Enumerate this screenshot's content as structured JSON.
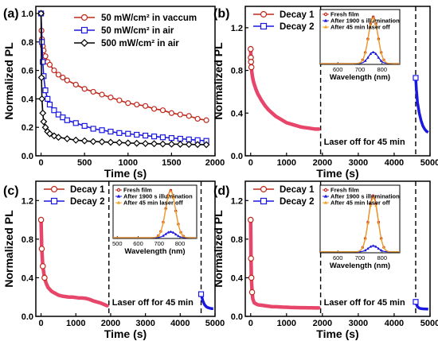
{
  "colors": {
    "red": "#c0281d",
    "redFill": "#ffffff",
    "blue": "#1a17e0",
    "black": "#000000",
    "orange": "#f0a326",
    "decayDense": "#e8456a"
  },
  "chart_data": [
    {
      "label": "(a)",
      "type": "scatter",
      "xlabel": "Time (s)",
      "ylabel": "Normalized PL",
      "xlim": [
        -60,
        2000
      ],
      "ylim": [
        0,
        1.05
      ],
      "xticks": [
        0,
        500,
        1000,
        1500,
        2000
      ],
      "yticks": [
        0.0,
        0.2,
        0.4,
        0.6,
        0.8,
        1.0
      ],
      "legend_position": "top-right",
      "series": [
        {
          "name": "50 mW/cm² in vaccum",
          "color_key": "red",
          "marker": "circle",
          "x": [
            0,
            5,
            10,
            20,
            30,
            50,
            75,
            100,
            150,
            200,
            250,
            300,
            400,
            500,
            600,
            700,
            800,
            900,
            1000,
            1100,
            1200,
            1300,
            1400,
            1500,
            1600,
            1700,
            1800,
            1900
          ],
          "y": [
            1.0,
            0.88,
            0.82,
            0.77,
            0.74,
            0.7,
            0.66,
            0.64,
            0.6,
            0.57,
            0.55,
            0.53,
            0.5,
            0.47,
            0.45,
            0.43,
            0.41,
            0.39,
            0.37,
            0.36,
            0.35,
            0.33,
            0.32,
            0.3,
            0.29,
            0.28,
            0.26,
            0.25
          ]
        },
        {
          "name": "50 mW/cm² in air",
          "color_key": "blue",
          "marker": "square",
          "x": [
            0,
            10,
            20,
            30,
            50,
            75,
            100,
            150,
            200,
            250,
            300,
            400,
            500,
            600,
            700,
            800,
            900,
            1000,
            1100,
            1200,
            1300,
            1400,
            1500,
            1600,
            1700,
            1800,
            1900
          ],
          "y": [
            1.0,
            0.8,
            0.66,
            0.56,
            0.46,
            0.4,
            0.36,
            0.32,
            0.29,
            0.27,
            0.25,
            0.23,
            0.21,
            0.19,
            0.18,
            0.17,
            0.16,
            0.155,
            0.148,
            0.142,
            0.136,
            0.13,
            0.125,
            0.12,
            0.115,
            0.11,
            0.105
          ]
        },
        {
          "name": "500 mW/cm² in air",
          "color_key": "black",
          "marker": "diamond",
          "x": [
            0,
            5,
            10,
            20,
            30,
            50,
            75,
            100,
            150,
            200,
            300,
            400,
            500,
            600,
            700,
            800,
            900,
            1000,
            1100,
            1200,
            1300,
            1400,
            1500,
            1600,
            1700,
            1800,
            1900
          ],
          "y": [
            1.0,
            0.55,
            0.4,
            0.3,
            0.24,
            0.2,
            0.17,
            0.155,
            0.14,
            0.13,
            0.12,
            0.11,
            0.105,
            0.1,
            0.098,
            0.095,
            0.093,
            0.09,
            0.088,
            0.086,
            0.085,
            0.083,
            0.082,
            0.081,
            0.08,
            0.079,
            0.078
          ]
        }
      ]
    },
    {
      "label": "(b)",
      "type": "scatter",
      "xlabel": "Time (s)",
      "ylabel": "Normalized PL",
      "xlim": [
        -150,
        5000
      ],
      "ylim": [
        0,
        1.4
      ],
      "xticks": [
        0,
        1000,
        2000,
        3000,
        4000,
        5000
      ],
      "yticks": [
        0.0,
        0.4,
        0.8,
        1.2
      ],
      "legend_position": "top-left",
      "annotation": "Laser off for 45 min",
      "dashed_lines_x": [
        1950,
        4600
      ],
      "series": [
        {
          "name": "Decay 1",
          "color_key": "red",
          "marker": "circle",
          "x": [
            0,
            5,
            10,
            20,
            30,
            50,
            75,
            100,
            150,
            200,
            300,
            400,
            500,
            600,
            700,
            800,
            900,
            1000,
            1200,
            1400,
            1600,
            1800,
            1900
          ],
          "y": [
            1.0,
            0.92,
            0.88,
            0.83,
            0.79,
            0.74,
            0.7,
            0.67,
            0.62,
            0.58,
            0.52,
            0.47,
            0.43,
            0.4,
            0.37,
            0.35,
            0.33,
            0.31,
            0.29,
            0.27,
            0.26,
            0.25,
            0.25
          ]
        },
        {
          "name": "Decay 2",
          "color_key": "blue",
          "marker": "square",
          "x": [
            4600,
            4620,
            4650,
            4700,
            4750,
            4800,
            4850,
            4900,
            4950
          ],
          "y": [
            0.73,
            0.62,
            0.5,
            0.4,
            0.33,
            0.28,
            0.25,
            0.23,
            0.22
          ]
        }
      ],
      "inset": {
        "xlabel": "Wavelength (nm)",
        "xlim": [
          520,
          880
        ],
        "ylim": [
          0,
          1.35
        ],
        "xticks": [
          600,
          700,
          800
        ],
        "peak_wavelength": 760,
        "fwhm": 50,
        "series": [
          {
            "name": "Fresh film",
            "color_key": "red",
            "marker": "circle",
            "amplitude": 1.15
          },
          {
            "name": "After 1900 s illumination",
            "color_key": "blue",
            "marker": "triangle",
            "amplitude": 0.28
          },
          {
            "name": "After 45 min laser off",
            "color_key": "orange",
            "marker": "triangle",
            "amplitude": 1.12
          }
        ]
      }
    },
    {
      "label": "(c)",
      "type": "scatter",
      "xlabel": "Time (s)",
      "ylabel": "Normalized PL",
      "xlim": [
        -150,
        5000
      ],
      "ylim": [
        0,
        1.4
      ],
      "xticks": [
        0,
        1000,
        2000,
        3000,
        4000,
        5000
      ],
      "yticks": [
        0.0,
        0.4,
        0.8,
        1.2
      ],
      "legend_position": "top-left",
      "annotation": "Laser off for 45 min",
      "dashed_lines_x": [
        1950,
        4600
      ],
      "series": [
        {
          "name": "Decay 1",
          "color_key": "red",
          "marker": "circle",
          "x": [
            0,
            20,
            50,
            100,
            150,
            200,
            300,
            400,
            500,
            600,
            700,
            800,
            900,
            1000,
            1100,
            1200,
            1300,
            1400,
            1500,
            1600,
            1700,
            1800,
            1900
          ],
          "y": [
            1.0,
            0.7,
            0.52,
            0.4,
            0.34,
            0.3,
            0.26,
            0.24,
            0.22,
            0.21,
            0.205,
            0.2,
            0.2,
            0.195,
            0.19,
            0.19,
            0.185,
            0.175,
            0.16,
            0.15,
            0.14,
            0.125,
            0.11
          ]
        },
        {
          "name": "Decay 2",
          "color_key": "blue",
          "marker": "square",
          "x": [
            4600,
            4650,
            4700,
            4750,
            4800,
            4850,
            4900,
            4950
          ],
          "y": [
            0.23,
            0.16,
            0.12,
            0.1,
            0.09,
            0.085,
            0.08,
            0.08
          ]
        }
      ],
      "inset": {
        "xlabel": "Wavelength (nm)",
        "xlim": [
          480,
          880
        ],
        "ylim": [
          0,
          1.35
        ],
        "xticks": [
          500,
          600,
          700,
          800
        ],
        "peak_wavelength": 755,
        "fwhm": 55,
        "series": [
          {
            "name": "Fresh film",
            "color_key": "red",
            "marker": "circle",
            "amplitude": 1.2
          },
          {
            "name": "After 1900 s illumination",
            "color_key": "blue",
            "marker": "triangle",
            "amplitude": 0.15
          },
          {
            "name": "After 45 min laser off",
            "color_key": "orange",
            "marker": "triangle",
            "amplitude": 1.18
          }
        ]
      }
    },
    {
      "label": "(d)",
      "type": "scatter",
      "xlabel": "Time (s)",
      "ylabel": "Normalized PL",
      "xlim": [
        -150,
        5000
      ],
      "ylim": [
        0,
        1.4
      ],
      "xticks": [
        0,
        1000,
        2000,
        3000,
        4000,
        5000
      ],
      "yticks": [
        0.0,
        0.4,
        0.8,
        1.2
      ],
      "legend_position": "top-left",
      "annotation": "Laser off for 45 min",
      "dashed_lines_x": [
        1950,
        4600
      ],
      "series": [
        {
          "name": "Decay 1",
          "color_key": "red",
          "marker": "circle",
          "x": [
            0,
            10,
            20,
            40,
            60,
            100,
            150,
            200,
            300,
            400,
            500,
            600,
            700,
            800,
            900,
            1000,
            1100,
            1200,
            1300,
            1400,
            1500,
            1600,
            1700,
            1800,
            1900
          ],
          "y": [
            1.0,
            0.6,
            0.4,
            0.25,
            0.18,
            0.14,
            0.13,
            0.12,
            0.115,
            0.11,
            0.105,
            0.1,
            0.1,
            0.098,
            0.096,
            0.095,
            0.093,
            0.092,
            0.091,
            0.09,
            0.09,
            0.089,
            0.089,
            0.088,
            0.088
          ]
        },
        {
          "name": "Decay 2",
          "color_key": "blue",
          "marker": "square",
          "x": [
            4600,
            4650,
            4700,
            4750,
            4800,
            4850,
            4900,
            4950
          ],
          "y": [
            0.15,
            0.1,
            0.085,
            0.08,
            0.078,
            0.077,
            0.076,
            0.075
          ]
        }
      ],
      "inset": {
        "xlabel": "Wavelength (nm)",
        "xlim": [
          520,
          880
        ],
        "ylim": [
          0,
          1.35
        ],
        "xticks": [
          600,
          700,
          800
        ],
        "peak_wavelength": 760,
        "fwhm": 50,
        "series": [
          {
            "name": "Fresh film",
            "color_key": "red",
            "marker": "circle",
            "amplitude": 1.12
          },
          {
            "name": "After 1900 s illumination",
            "color_key": "blue",
            "marker": "triangle",
            "amplitude": 0.12
          },
          {
            "name": "After 45 min laser off",
            "color_key": "orange",
            "marker": "triangle",
            "amplitude": 1.08
          }
        ]
      }
    }
  ]
}
